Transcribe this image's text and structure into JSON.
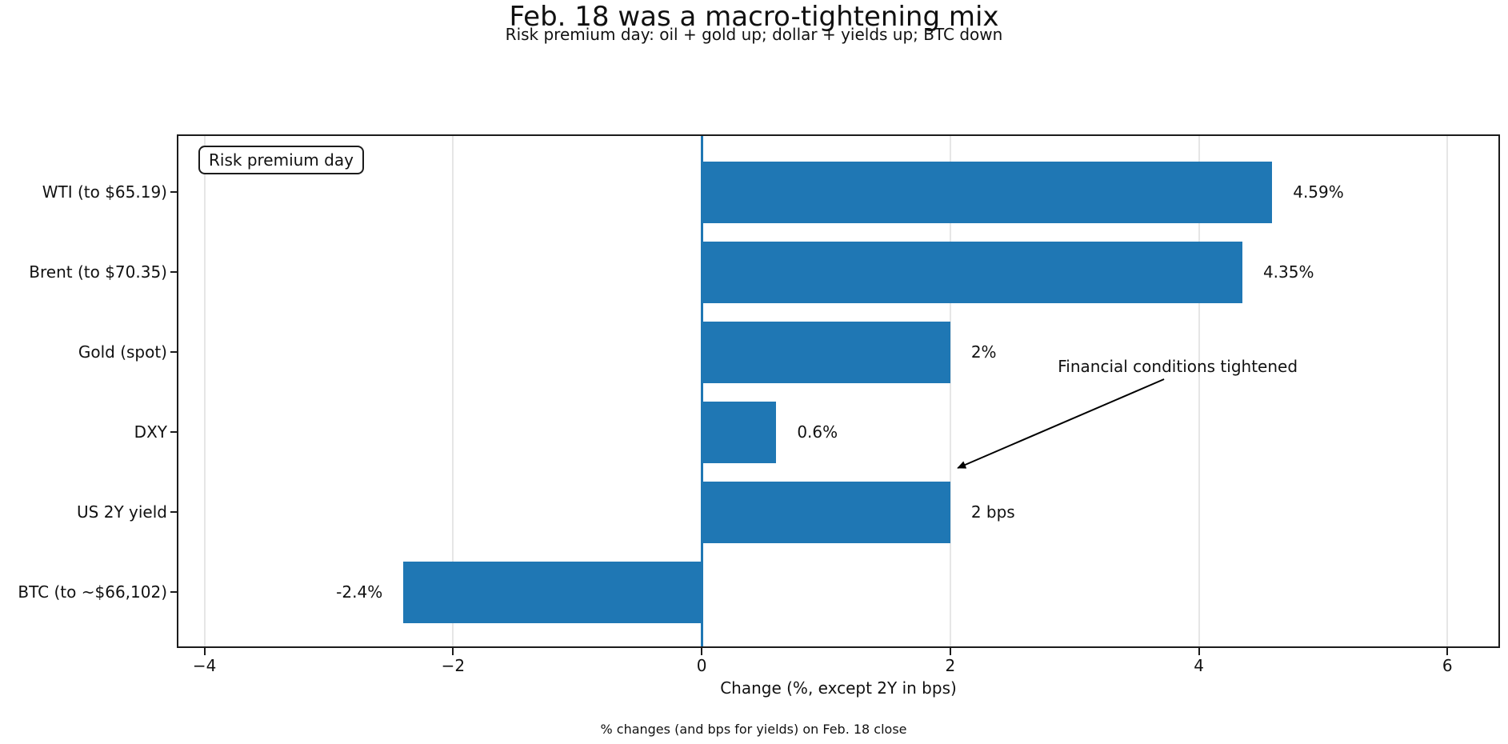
{
  "header": {
    "title": "Feb. 18 was a macro-tightening mix",
    "subtitle": "Risk premium day: oil + gold up; dollar + yields up; BTC down"
  },
  "legend": {
    "label": "Risk premium day"
  },
  "footer": {
    "note": "% changes (and bps for yields) on Feb. 18 close"
  },
  "chart_data": {
    "type": "bar",
    "orientation": "horizontal",
    "title": "Feb. 18 was a macro-tightening mix",
    "subtitle": "Risk premium day: oil + gold up; dollar + yields up; BTC down",
    "categories": [
      "WTI (to $65.19)",
      "Brent (to $70.35)",
      "Gold (spot)",
      "DXY",
      "US 2Y yield",
      "BTC (to ~$66,102)"
    ],
    "values": [
      4.59,
      4.35,
      2,
      0.6,
      2,
      -2.4
    ],
    "value_labels": [
      "4.59%",
      "4.35%",
      "2%",
      "0.6%",
      "2 bps",
      "-2.4%"
    ],
    "xlabel": "Change (%, except 2Y in bps)",
    "xticks": [
      -4,
      -2,
      0,
      2,
      4,
      6
    ],
    "xtick_labels": [
      "−4",
      "−2",
      "0",
      "2",
      "4",
      "6"
    ],
    "xlim": [
      -4.21,
      6.41
    ],
    "grid": true,
    "legend_position": "upper-left",
    "legend_label": "Risk premium day",
    "bar_color": "#1f77b4",
    "zero_line_color": "#1f77b4",
    "grid_color": "#e6e6e6",
    "annotation": {
      "text": "Financial conditions tightened",
      "text_at": [
        3.83,
        2.18
      ],
      "arrow_from": [
        3.72,
        2.34
      ],
      "arrow_to": [
        2.06,
        3.45
      ]
    }
  }
}
